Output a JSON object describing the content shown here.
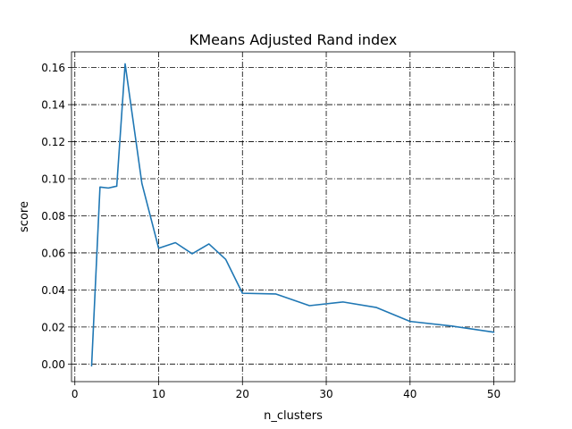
{
  "chart_data": {
    "type": "line",
    "title": "KMeans Adjusted Rand index",
    "xlabel": "n_clusters",
    "ylabel": "score",
    "xlim": [
      -0.4,
      52.5
    ],
    "ylim": [
      -0.0095,
      0.1685
    ],
    "xticks": [
      0,
      10,
      20,
      30,
      40,
      50
    ],
    "yticks": [
      0.0,
      0.02,
      0.04,
      0.06,
      0.08,
      0.1,
      0.12,
      0.14,
      0.16
    ],
    "xtick_labels": [
      "0",
      "10",
      "20",
      "30",
      "40",
      "50"
    ],
    "ytick_labels": [
      "0.00",
      "0.02",
      "0.04",
      "0.06",
      "0.08",
      "0.10",
      "0.12",
      "0.14",
      "0.16"
    ],
    "grid": true,
    "legend": false,
    "series": [
      {
        "color": "#1f77b4",
        "x": [
          2,
          3,
          4,
          5,
          6,
          8,
          10,
          12,
          14,
          16,
          18,
          20,
          24,
          28,
          32,
          36,
          40,
          45,
          50
        ],
        "y": [
          -0.001,
          0.0955,
          0.095,
          0.096,
          0.162,
          0.0975,
          0.0625,
          0.0655,
          0.0595,
          0.0648,
          0.0565,
          0.0382,
          0.0378,
          0.0315,
          0.0335,
          0.0305,
          0.023,
          0.0205,
          0.0172
        ]
      }
    ]
  }
}
